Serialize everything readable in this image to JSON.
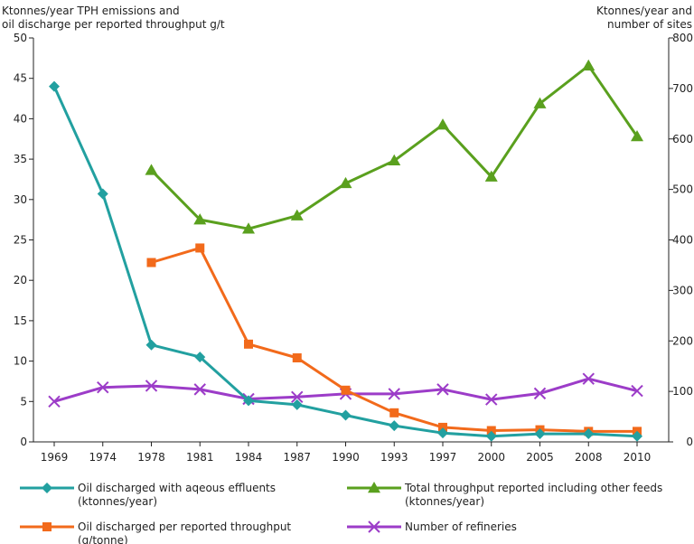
{
  "chart_data": {
    "type": "line",
    "title": "",
    "y_left_label": [
      "Ktonnes/year TPH emissions and",
      "oil discharge per reported throughput g/t"
    ],
    "y_right_label": [
      "Ktonnes/year and",
      "number of sites"
    ],
    "y_left_ticks": [
      0,
      5,
      10,
      15,
      20,
      25,
      30,
      35,
      40,
      45,
      50
    ],
    "y_right_ticks": [
      0,
      100,
      200,
      300,
      400,
      500,
      600,
      700,
      800
    ],
    "ylim_left": [
      0,
      50
    ],
    "ylim_right": [
      0,
      800
    ],
    "categories": [
      "1969",
      "1974",
      "1978",
      "1981",
      "1984",
      "1987",
      "1990",
      "1993",
      "1997",
      "2000",
      "2005",
      "2008",
      "2010"
    ],
    "grid": false,
    "legend_placement": "bottom",
    "series": [
      {
        "name": "Oil discharged with aqeous effluents",
        "name_line2": "(ktonnes/year)",
        "axis": "left",
        "marker": "diamond",
        "color": "#22a0a0",
        "values": [
          44.0,
          30.7,
          12.0,
          10.5,
          5.1,
          4.6,
          3.3,
          2.0,
          1.1,
          0.7,
          1.0,
          1.0,
          0.7
        ]
      },
      {
        "name": "Oil discharged per reported throughput",
        "name_line2": "(g/tonne)",
        "axis": "left",
        "marker": "square",
        "color": "#f26a1b",
        "values": [
          null,
          null,
          22.2,
          24.0,
          12.1,
          10.4,
          6.4,
          3.6,
          1.8,
          1.4,
          1.5,
          1.3,
          1.3
        ]
      },
      {
        "name": "Total throughput reported including other feeds",
        "name_line2": "(ktonnes/year)",
        "axis": "right",
        "marker": "triangle",
        "color": "#5aa01e",
        "values": [
          null,
          null,
          538,
          440,
          422,
          448,
          512,
          557,
          628,
          525,
          670,
          745,
          605
        ]
      },
      {
        "name": "Number of refineries",
        "name_line2": "",
        "axis": "right",
        "marker": "cross",
        "color": "#9c3cc8",
        "values": [
          80,
          108,
          111,
          104,
          85,
          89,
          95,
          95,
          104,
          84,
          96,
          125,
          101
        ]
      }
    ]
  }
}
